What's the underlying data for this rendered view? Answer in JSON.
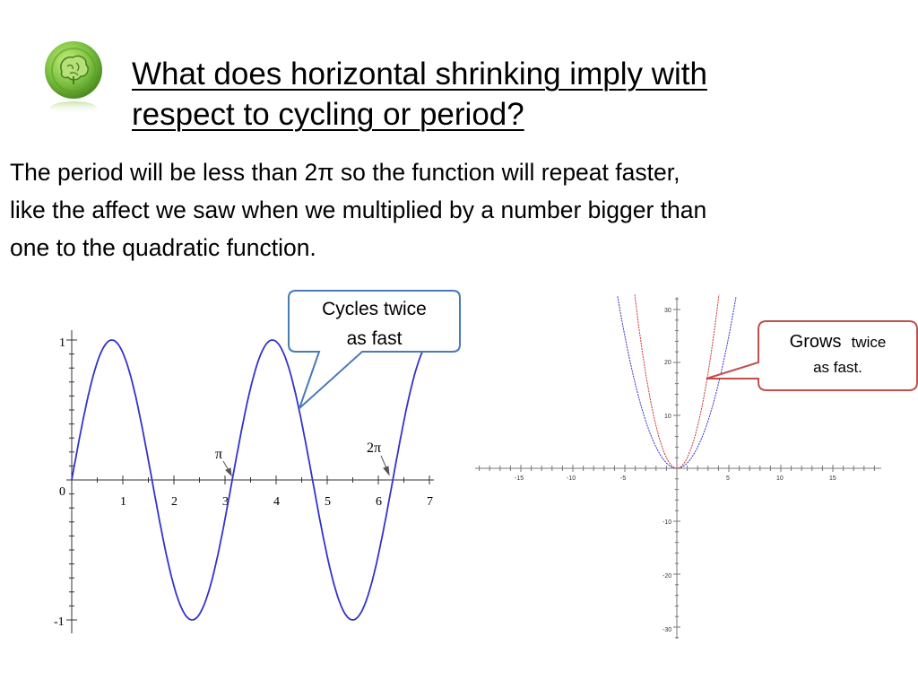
{
  "slide": {
    "title_lines": [
      "What does horizontal shrinking imply with",
      "respect to cycling or period?"
    ],
    "body_lines": [
      "The period will be less than 2π so the function will repeat faster,",
      "like the affect we saw when we multiplied by a number bigger than",
      "one to the quadratic function."
    ],
    "logo_icon": "brain-icon",
    "colors": {
      "curve_blue": "#3333cc",
      "curve_red": "#cc3333",
      "callout_blue": "#4a7ab8",
      "callout_red": "#c0504d",
      "logo_green": "#7cc242"
    }
  },
  "callouts": {
    "sine": {
      "lines": [
        "Cycles twice",
        "as fast"
      ]
    },
    "parabola": {
      "line1_big": "Grows",
      "line1_small": "twice",
      "line2": "as fast."
    }
  },
  "chart_data": [
    {
      "type": "line",
      "title": "",
      "function": "sin(2x)",
      "x": [
        0,
        0.39,
        0.79,
        1.18,
        1.57,
        1.96,
        2.36,
        2.75,
        3.14,
        3.53,
        3.93,
        4.32,
        4.71,
        5.11,
        5.5,
        5.89,
        6.28,
        6.68,
        7.0
      ],
      "y": [
        0,
        0.71,
        1,
        0.71,
        0,
        -0.71,
        -1,
        -0.71,
        0,
        0.71,
        1,
        0.71,
        0,
        -0.71,
        -1,
        -0.71,
        0,
        0.71,
        0.99
      ],
      "xlim": [
        0,
        7
      ],
      "ylim": [
        -1,
        1
      ],
      "x_tick_labels": [
        "1",
        "2",
        "3",
        "4",
        "5",
        "6",
        "7"
      ],
      "y_tick_labels": [
        "1",
        "0",
        "-1"
      ],
      "annotations": [
        "π",
        "2π"
      ],
      "series": [
        {
          "color": "#3333cc"
        }
      ]
    },
    {
      "type": "line",
      "title": "",
      "xlim": [
        -19,
        19
      ],
      "ylim": [
        -32,
        32
      ],
      "x_tick_labels": [
        "-15",
        "-10",
        "-5",
        "5",
        "10",
        "15"
      ],
      "y_tick_labels": [
        "30",
        "20",
        "10",
        "-10",
        "-20",
        "-30"
      ],
      "series": [
        {
          "function": "x^2",
          "x": [
            -5.5,
            -4,
            -3,
            -2,
            -1,
            0,
            1,
            2,
            3,
            4,
            5.5
          ],
          "y": [
            30.25,
            16,
            9,
            4,
            1,
            0,
            1,
            4,
            9,
            16,
            30.25
          ],
          "color": "#3333cc"
        },
        {
          "function": "2x^2",
          "x": [
            -3.9,
            -3,
            -2,
            -1,
            0,
            1,
            2,
            3,
            3.9
          ],
          "y": [
            30.42,
            18,
            8,
            2,
            0,
            2,
            8,
            18,
            30.42
          ],
          "color": "#cc3333"
        }
      ]
    }
  ]
}
